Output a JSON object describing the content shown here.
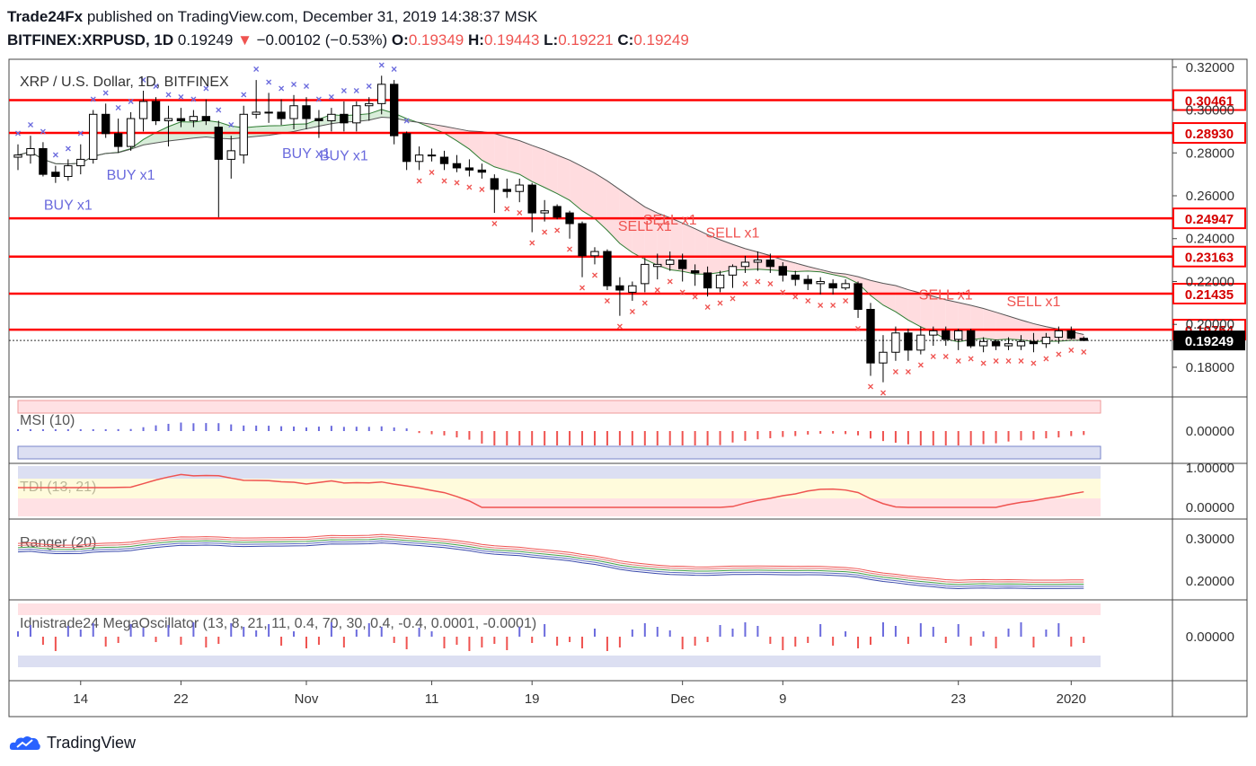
{
  "header": {
    "publisher": "Trade24Fx",
    "published_text": "published on TradingView.com, December 31, 2019 14:38:37 MSK",
    "symbol_line_prefix": "BITFINEX:XRPUSD, 1D",
    "last_price": "0.19249",
    "change_arrow": "▼",
    "change": "−0.00102 (−0.53%)",
    "o_label": "O:",
    "o_value": "0.19349",
    "h_label": "H:",
    "h_value": "0.19443",
    "l_label": "L:",
    "l_value": "0.19221",
    "c_label": "C:",
    "c_value": "0.19249"
  },
  "footer": {
    "brand": "TradingView"
  },
  "colors": {
    "up": "#ffffff",
    "down": "#000000",
    "level": "#ff0000",
    "buy": "#6a6add",
    "sell": "#ef5350",
    "kenji_up": "#c8e6c9",
    "kenji_dn": "#ffcdd2"
  },
  "chart_data": {
    "type": "candlestick",
    "title": "XRP / U.S. Dollar, 1D, BITFINEX",
    "y_axis": {
      "ticks": [
        "0.32000",
        "0.30000",
        "0.28000",
        "0.26000",
        "0.24000",
        "0.22000",
        "0.20000",
        "0.18000"
      ],
      "range": [
        0.167,
        0.322
      ]
    },
    "x_axis": {
      "ticks": [
        {
          "label": "14",
          "index": 5
        },
        {
          "label": "22",
          "index": 13
        },
        {
          "label": "Nov",
          "index": 23
        },
        {
          "label": "11",
          "index": 33
        },
        {
          "label": "19",
          "index": 41
        },
        {
          "label": "Dec",
          "index": 53
        },
        {
          "label": "9",
          "index": 61
        },
        {
          "label": "23",
          "index": 75
        },
        {
          "label": "2020",
          "index": 84
        }
      ]
    },
    "levels": [
      "0.30461",
      "0.28930",
      "0.24947",
      "0.23163",
      "0.21435",
      "0.19754"
    ],
    "last_price_label": "0.19249",
    "signals": [
      {
        "text": "BUY x1",
        "index": 4,
        "type": "buy"
      },
      {
        "text": "BUY x1",
        "index": 9,
        "type": "buy"
      },
      {
        "text": "BUY x1",
        "index": 23,
        "type": "buy"
      },
      {
        "text": "BUY x1",
        "index": 26,
        "type": "buy"
      },
      {
        "text": "SELL x1",
        "index": 50,
        "type": "sell"
      },
      {
        "text": "SELL x1",
        "index": 52,
        "type": "sell"
      },
      {
        "text": "SELL x1",
        "index": 57,
        "type": "sell"
      },
      {
        "text": "SELL x1",
        "index": 74,
        "type": "sell"
      },
      {
        "text": "SELL x1",
        "index": 81,
        "type": "sell"
      }
    ],
    "candles": [
      {
        "o": 0.278,
        "h": 0.284,
        "l": 0.272,
        "c": 0.279
      },
      {
        "o": 0.279,
        "h": 0.288,
        "l": 0.275,
        "c": 0.282
      },
      {
        "o": 0.282,
        "h": 0.285,
        "l": 0.269,
        "c": 0.27
      },
      {
        "o": 0.271,
        "h": 0.274,
        "l": 0.266,
        "c": 0.269
      },
      {
        "o": 0.269,
        "h": 0.277,
        "l": 0.267,
        "c": 0.274
      },
      {
        "o": 0.274,
        "h": 0.284,
        "l": 0.27,
        "c": 0.277
      },
      {
        "o": 0.277,
        "h": 0.3,
        "l": 0.275,
        "c": 0.298
      },
      {
        "o": 0.298,
        "h": 0.303,
        "l": 0.287,
        "c": 0.289
      },
      {
        "o": 0.289,
        "h": 0.296,
        "l": 0.28,
        "c": 0.283
      },
      {
        "o": 0.283,
        "h": 0.299,
        "l": 0.281,
        "c": 0.296
      },
      {
        "o": 0.296,
        "h": 0.309,
        "l": 0.29,
        "c": 0.304
      },
      {
        "o": 0.304,
        "h": 0.306,
        "l": 0.293,
        "c": 0.295
      },
      {
        "o": 0.295,
        "h": 0.302,
        "l": 0.283,
        "c": 0.296
      },
      {
        "o": 0.296,
        "h": 0.301,
        "l": 0.292,
        "c": 0.295
      },
      {
        "o": 0.295,
        "h": 0.3,
        "l": 0.292,
        "c": 0.297
      },
      {
        "o": 0.297,
        "h": 0.305,
        "l": 0.293,
        "c": 0.295
      },
      {
        "o": 0.292,
        "h": 0.295,
        "l": 0.25,
        "c": 0.277
      },
      {
        "o": 0.277,
        "h": 0.288,
        "l": 0.268,
        "c": 0.281
      },
      {
        "o": 0.279,
        "h": 0.302,
        "l": 0.275,
        "c": 0.298
      },
      {
        "o": 0.298,
        "h": 0.314,
        "l": 0.296,
        "c": 0.299
      },
      {
        "o": 0.299,
        "h": 0.308,
        "l": 0.294,
        "c": 0.299
      },
      {
        "o": 0.299,
        "h": 0.305,
        "l": 0.293,
        "c": 0.296
      },
      {
        "o": 0.296,
        "h": 0.307,
        "l": 0.291,
        "c": 0.302
      },
      {
        "o": 0.302,
        "h": 0.306,
        "l": 0.291,
        "c": 0.296
      },
      {
        "o": 0.296,
        "h": 0.3,
        "l": 0.287,
        "c": 0.295
      },
      {
        "o": 0.295,
        "h": 0.301,
        "l": 0.29,
        "c": 0.298
      },
      {
        "o": 0.298,
        "h": 0.304,
        "l": 0.29,
        "c": 0.294
      },
      {
        "o": 0.294,
        "h": 0.304,
        "l": 0.29,
        "c": 0.302
      },
      {
        "o": 0.302,
        "h": 0.306,
        "l": 0.295,
        "c": 0.303
      },
      {
        "o": 0.303,
        "h": 0.316,
        "l": 0.298,
        "c": 0.312
      },
      {
        "o": 0.312,
        "h": 0.314,
        "l": 0.284,
        "c": 0.288
      },
      {
        "o": 0.289,
        "h": 0.29,
        "l": 0.272,
        "c": 0.276
      },
      {
        "o": 0.276,
        "h": 0.283,
        "l": 0.272,
        "c": 0.279
      },
      {
        "o": 0.279,
        "h": 0.282,
        "l": 0.276,
        "c": 0.279
      },
      {
        "o": 0.278,
        "h": 0.281,
        "l": 0.272,
        "c": 0.275
      },
      {
        "o": 0.275,
        "h": 0.279,
        "l": 0.271,
        "c": 0.273
      },
      {
        "o": 0.273,
        "h": 0.277,
        "l": 0.269,
        "c": 0.272
      },
      {
        "o": 0.272,
        "h": 0.275,
        "l": 0.268,
        "c": 0.271
      },
      {
        "o": 0.268,
        "h": 0.27,
        "l": 0.252,
        "c": 0.263
      },
      {
        "o": 0.263,
        "h": 0.268,
        "l": 0.259,
        "c": 0.262
      },
      {
        "o": 0.262,
        "h": 0.268,
        "l": 0.257,
        "c": 0.265
      },
      {
        "o": 0.265,
        "h": 0.266,
        "l": 0.243,
        "c": 0.252
      },
      {
        "o": 0.252,
        "h": 0.258,
        "l": 0.248,
        "c": 0.253
      },
      {
        "o": 0.255,
        "h": 0.256,
        "l": 0.249,
        "c": 0.25
      },
      {
        "o": 0.252,
        "h": 0.253,
        "l": 0.24,
        "c": 0.247
      },
      {
        "o": 0.247,
        "h": 0.248,
        "l": 0.222,
        "c": 0.232
      },
      {
        "o": 0.232,
        "h": 0.236,
        "l": 0.228,
        "c": 0.234
      },
      {
        "o": 0.234,
        "h": 0.235,
        "l": 0.216,
        "c": 0.218
      },
      {
        "o": 0.218,
        "h": 0.222,
        "l": 0.204,
        "c": 0.216
      },
      {
        "o": 0.215,
        "h": 0.22,
        "l": 0.211,
        "c": 0.218
      },
      {
        "o": 0.219,
        "h": 0.231,
        "l": 0.215,
        "c": 0.228
      },
      {
        "o": 0.227,
        "h": 0.233,
        "l": 0.221,
        "c": 0.228
      },
      {
        "o": 0.228,
        "h": 0.234,
        "l": 0.225,
        "c": 0.23
      },
      {
        "o": 0.23,
        "h": 0.233,
        "l": 0.22,
        "c": 0.226
      },
      {
        "o": 0.225,
        "h": 0.228,
        "l": 0.218,
        "c": 0.224
      },
      {
        "o": 0.224,
        "h": 0.227,
        "l": 0.213,
        "c": 0.217
      },
      {
        "o": 0.217,
        "h": 0.225,
        "l": 0.215,
        "c": 0.223
      },
      {
        "o": 0.223,
        "h": 0.228,
        "l": 0.217,
        "c": 0.227
      },
      {
        "o": 0.227,
        "h": 0.232,
        "l": 0.224,
        "c": 0.229
      },
      {
        "o": 0.229,
        "h": 0.234,
        "l": 0.225,
        "c": 0.23
      },
      {
        "o": 0.23,
        "h": 0.233,
        "l": 0.224,
        "c": 0.227
      },
      {
        "o": 0.227,
        "h": 0.229,
        "l": 0.22,
        "c": 0.223
      },
      {
        "o": 0.223,
        "h": 0.225,
        "l": 0.218,
        "c": 0.221
      },
      {
        "o": 0.221,
        "h": 0.223,
        "l": 0.216,
        "c": 0.219
      },
      {
        "o": 0.219,
        "h": 0.222,
        "l": 0.214,
        "c": 0.22
      },
      {
        "o": 0.219,
        "h": 0.221,
        "l": 0.214,
        "c": 0.217
      },
      {
        "o": 0.217,
        "h": 0.221,
        "l": 0.216,
        "c": 0.219
      },
      {
        "o": 0.219,
        "h": 0.22,
        "l": 0.203,
        "c": 0.207
      },
      {
        "o": 0.207,
        "h": 0.21,
        "l": 0.176,
        "c": 0.182
      },
      {
        "o": 0.182,
        "h": 0.195,
        "l": 0.173,
        "c": 0.187
      },
      {
        "o": 0.187,
        "h": 0.199,
        "l": 0.183,
        "c": 0.196
      },
      {
        "o": 0.196,
        "h": 0.198,
        "l": 0.183,
        "c": 0.188
      },
      {
        "o": 0.188,
        "h": 0.199,
        "l": 0.186,
        "c": 0.195
      },
      {
        "o": 0.195,
        "h": 0.199,
        "l": 0.19,
        "c": 0.197
      },
      {
        "o": 0.197,
        "h": 0.199,
        "l": 0.19,
        "c": 0.193
      },
      {
        "o": 0.193,
        "h": 0.198,
        "l": 0.188,
        "c": 0.197
      },
      {
        "o": 0.197,
        "h": 0.198,
        "l": 0.189,
        "c": 0.19
      },
      {
        "o": 0.19,
        "h": 0.194,
        "l": 0.187,
        "c": 0.192
      },
      {
        "o": 0.192,
        "h": 0.193,
        "l": 0.188,
        "c": 0.19
      },
      {
        "o": 0.19,
        "h": 0.194,
        "l": 0.188,
        "c": 0.191
      },
      {
        "o": 0.19,
        "h": 0.195,
        "l": 0.188,
        "c": 0.192
      },
      {
        "o": 0.192,
        "h": 0.196,
        "l": 0.187,
        "c": 0.191
      },
      {
        "o": 0.191,
        "h": 0.196,
        "l": 0.189,
        "c": 0.194
      },
      {
        "o": 0.194,
        "h": 0.199,
        "l": 0.191,
        "c": 0.197
      },
      {
        "o": 0.197,
        "h": 0.199,
        "l": 0.193,
        "c": 0.1935
      },
      {
        "o": 0.1935,
        "h": 0.1944,
        "l": 0.1922,
        "c": 0.1925
      }
    ],
    "panels": [
      {
        "name": "MSI (10)",
        "ticks": [
          "0.00000"
        ]
      },
      {
        "name": "TDI (13, 21)",
        "ticks": [
          "1.00000",
          "0.00000"
        ]
      },
      {
        "name": "Ranger (20)",
        "ticks": [
          "0.30000",
          "0.20000"
        ]
      },
      {
        "name": "Idnistrade24 MegaOscillator (13, 8, 21, 11, 0.4, 70, 30, 0.4, -0.4, 0.0001, -0.0001)",
        "ticks": [
          "0.00000"
        ]
      }
    ]
  }
}
